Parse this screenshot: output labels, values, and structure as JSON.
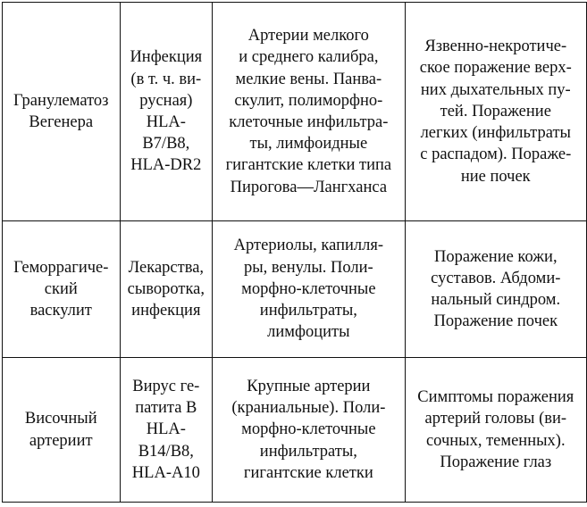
{
  "rows": [
    {
      "disease": [
        "Гранулематоз",
        "Вегенера"
      ],
      "etiology": [
        "Инфекция",
        "(в т. ч. ви-",
        "русная)",
        "HLA-",
        "B7/B8,",
        "HLA-DR2"
      ],
      "pathology": [
        "Артерии мелкого",
        "и среднего калибра,",
        "мелкие вены. Панва-",
        "скулит, полиморфно-",
        "клеточные инфильтра-",
        "ты, лимфоидные",
        "гигантские клетки типа",
        "Пирогова—Лангханса"
      ],
      "clinic": [
        "Язвенно-некротиче-",
        "ское поражение верх-",
        "них дыхательных пу-",
        "тей. Поражение",
        "легких (инфильтраты",
        "с распадом). Пораже-",
        "ние почек"
      ]
    },
    {
      "disease": [
        "Геморрагиче-",
        "ский",
        "васкулит"
      ],
      "etiology": [
        "Лекарства,",
        "сыворотка,",
        "инфекция"
      ],
      "pathology": [
        "Артериолы, капилля-",
        "ры, венулы. Поли-",
        "морфно-клеточные",
        "инфильтраты,",
        "лимфоциты"
      ],
      "clinic": [
        "Поражение кожи,",
        "суставов. Абдоми-",
        "нальный синдром.",
        "Поражение почек"
      ]
    },
    {
      "disease": [
        "Височный",
        "артериит"
      ],
      "etiology": [
        "Вирус ге-",
        "патита В",
        "HLA-",
        "B14/B8,",
        "HLA-A10"
      ],
      "pathology": [
        "Крупные артерии",
        "(краниальные). Поли-",
        "морфно-клеточные",
        "инфильтраты,",
        "гигантские клетки"
      ],
      "clinic": [
        "Симптомы поражения",
        "артерий головы (ви-",
        "сочных, теменных).",
        "Поражение глаз"
      ]
    }
  ]
}
